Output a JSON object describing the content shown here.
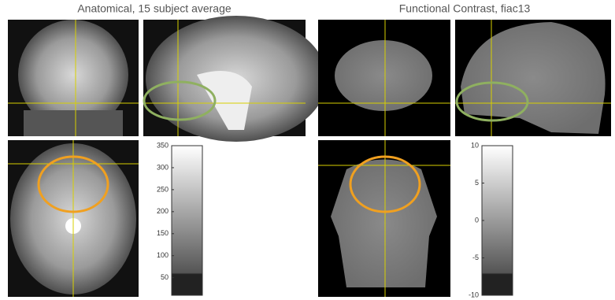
{
  "panels": [
    {
      "title": "Anatomical, 15 subject average",
      "colorbar": {
        "lim": [
          10,
          350
        ],
        "ticks": [
          350,
          300,
          250,
          200,
          150,
          100,
          50
        ]
      }
    },
    {
      "title": "Functional Contrast, fiac13",
      "colorbar": {
        "lim": [
          -10,
          10
        ],
        "ticks": [
          10,
          5,
          0,
          -5,
          -10
        ]
      }
    }
  ]
}
